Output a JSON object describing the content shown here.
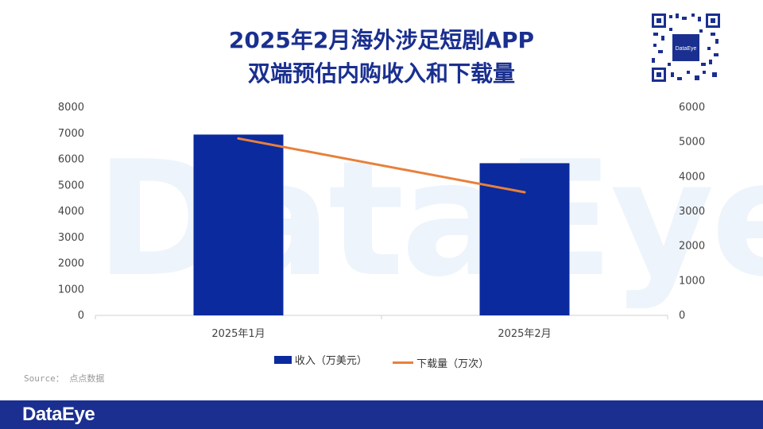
{
  "title_line1": "2025年2月海外涉足短剧APP",
  "title_line2": "双端预估内购收入和下载量",
  "source": "Source： 点点数据",
  "brand": "DataEye",
  "qr_label": "DataEye",
  "colors": {
    "bar": "#0a2a9e",
    "line": "#e8803a",
    "title": "#1a2f8f",
    "footer": "#1a2f8f"
  },
  "legend": {
    "bar_label": "收入（万美元）",
    "line_label": "下载量（万次）"
  },
  "chart_data": {
    "type": "bar+line",
    "categories": [
      "2025年1月",
      "2025年2月"
    ],
    "series": [
      {
        "name": "收入（万美元）",
        "type": "bar",
        "axis": "left",
        "values": [
          6950,
          5850
        ]
      },
      {
        "name": "下载量（万次）",
        "type": "line",
        "axis": "right",
        "values": [
          5100,
          3550
        ]
      }
    ],
    "y_left": {
      "min": 0,
      "max": 8000,
      "ticks": [
        0,
        1000,
        2000,
        3000,
        4000,
        5000,
        6000,
        7000,
        8000
      ]
    },
    "y_right": {
      "min": 0,
      "max": 6000,
      "ticks": [
        0,
        1000,
        2000,
        3000,
        4000,
        5000,
        6000
      ]
    },
    "grid": false,
    "legend_position": "bottom"
  }
}
